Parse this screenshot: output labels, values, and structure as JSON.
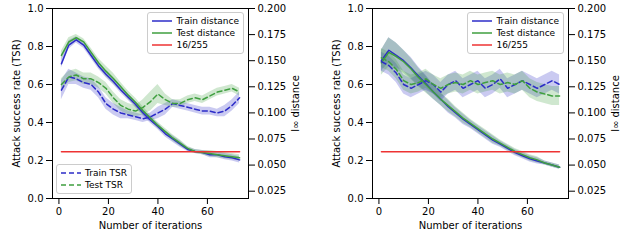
{
  "chart_data": [
    {
      "type": "line",
      "xlabel": "Number of iterations",
      "ylabel": "Attack success rate (TSR)",
      "y2label": "l∞ distance",
      "x": [
        1,
        4,
        7,
        10,
        13,
        16,
        19,
        22,
        25,
        28,
        31,
        34,
        37,
        40,
        43,
        46,
        49,
        52,
        55,
        58,
        61,
        64,
        67,
        70,
        73
      ],
      "xlim": [
        -2.6,
        76.6
      ],
      "xticks": [
        0,
        20,
        40,
        60
      ],
      "ylim": [
        0,
        1.0
      ],
      "yticks": [
        {
          "value": 0,
          "label": "0.0"
        },
        0.2,
        0.4,
        0.6,
        0.8,
        {
          "value": 1.0,
          "label": "1.0"
        }
      ],
      "y2lim": [
        0.018,
        0.2
      ],
      "y2ticks": [
        0.025,
        {
          "value": 0.05,
          "label": "0.050"
        },
        0.075,
        {
          "value": 0.1,
          "label": "0.100"
        },
        0.125,
        {
          "value": 0.15,
          "label": "0.150"
        },
        0.175,
        {
          "value": 0.2,
          "label": "0.200"
        }
      ],
      "legend": "upper right",
      "series": [
        {
          "name": "Train distance",
          "color": "#2c2cc8",
          "line_style": "solid",
          "axis": "y2",
          "values": [
            0.147,
            0.165,
            0.17,
            0.165,
            0.155,
            0.145,
            0.137,
            0.13,
            0.122,
            0.115,
            0.108,
            0.1,
            0.093,
            0.087,
            0.08,
            0.075,
            0.07,
            0.065,
            0.063,
            0.062,
            0.06,
            0.06,
            0.058,
            0.057,
            0.055
          ],
          "spread": [
            0.004,
            0.004,
            0.003,
            0.003,
            0.003,
            0.003,
            0.003,
            0.003,
            0.003,
            0.003,
            0.003,
            0.003,
            0.003,
            0.003,
            0.003,
            0.003,
            0.003,
            0.002,
            0.002,
            0.002,
            0.003,
            0.003,
            0.003,
            0.003,
            0.003
          ]
        },
        {
          "name": "Test distance",
          "color": "#3f9f3f",
          "line_style": "solid",
          "axis": "y2",
          "values": [
            0.155,
            0.168,
            0.172,
            0.168,
            0.158,
            0.148,
            0.14,
            0.133,
            0.125,
            0.117,
            0.11,
            0.102,
            0.095,
            0.088,
            0.082,
            0.076,
            0.071,
            0.066,
            0.063,
            0.062,
            0.061,
            0.06,
            0.059,
            0.058,
            0.057
          ],
          "spread": [
            0.004,
            0.004,
            0.003,
            0.003,
            0.004,
            0.004,
            0.005,
            0.005,
            0.004,
            0.004,
            0.004,
            0.004,
            0.003,
            0.003,
            0.003,
            0.003,
            0.003,
            0.002,
            0.002,
            0.002,
            0.003,
            0.003,
            0.003,
            0.003,
            0.003
          ]
        },
        {
          "name": "16/255",
          "color": "#ee3333",
          "line_style": "solid",
          "axis": "y2",
          "values": [
            0.0627,
            0.0627,
            0.0627,
            0.0627,
            0.0627,
            0.0627,
            0.0627,
            0.0627,
            0.0627,
            0.0627,
            0.0627,
            0.0627,
            0.0627,
            0.0627,
            0.0627,
            0.0627,
            0.0627,
            0.0627,
            0.0627,
            0.0627,
            0.0627,
            0.0627,
            0.0627,
            0.0627,
            0.0627
          ]
        },
        {
          "name": "Train TSR",
          "color": "#2c2cc8",
          "line_style": "dashed",
          "legend": "lower left",
          "values": [
            0.57,
            0.64,
            0.63,
            0.61,
            0.6,
            0.56,
            0.5,
            0.47,
            0.45,
            0.44,
            0.43,
            0.42,
            0.43,
            0.45,
            0.47,
            0.5,
            0.49,
            0.48,
            0.47,
            0.46,
            0.46,
            0.45,
            0.46,
            0.49,
            0.53
          ],
          "spread": [
            0.05,
            0.04,
            0.03,
            0.03,
            0.03,
            0.03,
            0.03,
            0.03,
            0.03,
            0.02,
            0.02,
            0.02,
            0.02,
            0.03,
            0.03,
            0.02,
            0.02,
            0.02,
            0.02,
            0.02,
            0.02,
            0.02,
            0.03,
            0.03,
            0.03
          ]
        },
        {
          "name": "Test TSR",
          "color": "#3f9f3f",
          "line_style": "dashed",
          "legend": "lower left",
          "values": [
            0.6,
            0.64,
            0.65,
            0.63,
            0.63,
            0.61,
            0.58,
            0.53,
            0.49,
            0.47,
            0.46,
            0.48,
            0.51,
            0.55,
            0.52,
            0.5,
            0.5,
            0.52,
            0.53,
            0.52,
            0.54,
            0.56,
            0.57,
            0.58,
            0.56
          ],
          "spread": [
            0.03,
            0.03,
            0.03,
            0.03,
            0.03,
            0.03,
            0.03,
            0.03,
            0.03,
            0.03,
            0.03,
            0.04,
            0.05,
            0.05,
            0.03,
            0.02,
            0.02,
            0.02,
            0.02,
            0.02,
            0.02,
            0.02,
            0.02,
            0.02,
            0.02
          ]
        }
      ]
    },
    {
      "type": "line",
      "xlabel": "Number of iterations",
      "ylabel": "Attack success rate (TSR)",
      "y2label": "l∞ distance",
      "x": [
        1,
        4,
        7,
        10,
        13,
        16,
        19,
        22,
        25,
        28,
        31,
        34,
        37,
        40,
        43,
        46,
        49,
        52,
        55,
        58,
        61,
        64,
        67,
        70,
        73
      ],
      "xlim": [
        -2.6,
        76.6
      ],
      "xticks": [
        0,
        20,
        40,
        60
      ],
      "ylim": [
        0,
        1.0
      ],
      "yticks": [
        {
          "value": 0,
          "label": "0.0"
        },
        0.2,
        0.4,
        0.6,
        0.8,
        {
          "value": 1.0,
          "label": "1.0"
        }
      ],
      "y2lim": [
        0.018,
        0.2
      ],
      "y2ticks": [
        0.025,
        {
          "value": 0.05,
          "label": "0.050"
        },
        0.075,
        {
          "value": 0.1,
          "label": "0.100"
        },
        0.125,
        {
          "value": 0.15,
          "label": "0.150"
        },
        0.175,
        {
          "value": 0.2,
          "label": "0.200"
        }
      ],
      "legend": "upper right",
      "series": [
        {
          "name": "Train distance",
          "color": "#2c2cc8",
          "line_style": "solid",
          "axis": "y2",
          "values": [
            0.15,
            0.16,
            0.155,
            0.15,
            0.143,
            0.135,
            0.128,
            0.12,
            0.113,
            0.106,
            0.1,
            0.094,
            0.089,
            0.084,
            0.079,
            0.074,
            0.07,
            0.066,
            0.062,
            0.059,
            0.056,
            0.054,
            0.052,
            0.05,
            0.048
          ],
          "spread": [
            0.01,
            0.012,
            0.012,
            0.01,
            0.01,
            0.009,
            0.008,
            0.007,
            0.006,
            0.006,
            0.005,
            0.005,
            0.004,
            0.004,
            0.004,
            0.004,
            0.003,
            0.003,
            0.003,
            0.003,
            0.003,
            0.003,
            0.002,
            0.002,
            0.002
          ]
        },
        {
          "name": "Test distance",
          "color": "#3f9f3f",
          "line_style": "solid",
          "axis": "y2",
          "values": [
            0.148,
            0.158,
            0.154,
            0.149,
            0.142,
            0.134,
            0.127,
            0.12,
            0.113,
            0.107,
            0.101,
            0.095,
            0.09,
            0.085,
            0.08,
            0.075,
            0.071,
            0.067,
            0.063,
            0.06,
            0.057,
            0.055,
            0.052,
            0.05,
            0.048
          ],
          "spread": [
            0.012,
            0.014,
            0.013,
            0.011,
            0.01,
            0.009,
            0.008,
            0.007,
            0.006,
            0.006,
            0.005,
            0.005,
            0.004,
            0.004,
            0.004,
            0.004,
            0.003,
            0.003,
            0.003,
            0.003,
            0.003,
            0.003,
            0.002,
            0.002,
            0.002
          ]
        },
        {
          "name": "16/255",
          "color": "#ee3333",
          "line_style": "solid",
          "axis": "y2",
          "values": [
            0.0627,
            0.0627,
            0.0627,
            0.0627,
            0.0627,
            0.0627,
            0.0627,
            0.0627,
            0.0627,
            0.0627,
            0.0627,
            0.0627,
            0.0627,
            0.0627,
            0.0627,
            0.0627,
            0.0627,
            0.0627,
            0.0627,
            0.0627,
            0.0627,
            0.0627,
            0.0627,
            0.0627,
            0.0627
          ]
        },
        {
          "name": "Train TSR",
          "color": "#2c2cc8",
          "line_style": "dashed",
          "legend": false,
          "values": [
            0.72,
            0.7,
            0.66,
            0.6,
            0.58,
            0.6,
            0.62,
            0.6,
            0.56,
            0.6,
            0.62,
            0.58,
            0.6,
            0.62,
            0.58,
            0.6,
            0.63,
            0.58,
            0.6,
            0.62,
            0.6,
            0.58,
            0.6,
            0.62,
            0.6
          ],
          "spread": [
            0.05,
            0.05,
            0.05,
            0.05,
            0.05,
            0.05,
            0.05,
            0.05,
            0.05,
            0.05,
            0.05,
            0.05,
            0.05,
            0.05,
            0.05,
            0.05,
            0.05,
            0.05,
            0.05,
            0.05,
            0.05,
            0.05,
            0.05,
            0.05,
            0.05
          ]
        },
        {
          "name": "Test TSR",
          "color": "#3f9f3f",
          "line_style": "dashed",
          "legend": false,
          "values": [
            0.74,
            0.72,
            0.68,
            0.62,
            0.6,
            0.61,
            0.63,
            0.6,
            0.58,
            0.6,
            0.61,
            0.6,
            0.62,
            0.6,
            0.61,
            0.62,
            0.6,
            0.61,
            0.6,
            0.62,
            0.58,
            0.56,
            0.55,
            0.54,
            0.54
          ],
          "spread": [
            0.05,
            0.05,
            0.05,
            0.05,
            0.05,
            0.05,
            0.05,
            0.05,
            0.05,
            0.05,
            0.05,
            0.05,
            0.05,
            0.05,
            0.05,
            0.05,
            0.05,
            0.05,
            0.05,
            0.05,
            0.05,
            0.05,
            0.05,
            0.05,
            0.05
          ]
        }
      ]
    }
  ]
}
